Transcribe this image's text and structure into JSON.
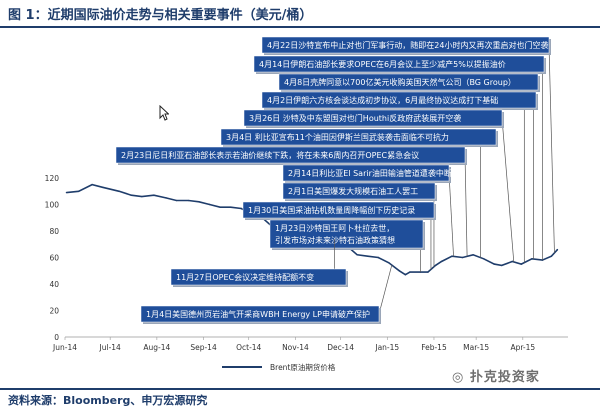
{
  "title": "图 1：近期国际油价走势与相关重要事件（美元/桶）",
  "source": "资料来源：Bloomberg、申万宏源研究",
  "watermark": "扑克投资家",
  "colors": {
    "line": "#1f3d6b",
    "event_box": "#1f4e9a",
    "title": "#1f3d6b"
  },
  "icons": [
    "cursor-icon",
    "wechat-icon"
  ],
  "chart_data": {
    "type": "line",
    "title": "",
    "xlabel": "",
    "ylabel": "",
    "ylim": [
      0,
      120
    ],
    "y_ticks": [
      0,
      20,
      40,
      60,
      80,
      100,
      120
    ],
    "x_tick_labels": [
      "Jun-14",
      "Jul-14",
      "Aug-14",
      "Sep-14",
      "Oct-14",
      "Nov-14",
      "Dec-14",
      "Jan-15",
      "Feb-15",
      "Mar-15",
      "Apr-15"
    ],
    "legend": {
      "placement": "bottom-center"
    },
    "series": [
      {
        "name": "Brent原油期货价格",
        "x": [
          "2014-06-02",
          "2014-06-10",
          "2014-06-19",
          "2014-06-26",
          "2014-07-07",
          "2014-07-15",
          "2014-07-22",
          "2014-07-30",
          "2014-08-07",
          "2014-08-14",
          "2014-08-22",
          "2014-08-29",
          "2014-09-05",
          "2014-09-12",
          "2014-09-19",
          "2014-09-26",
          "2014-10-03",
          "2014-10-10",
          "2014-10-16",
          "2014-10-24",
          "2014-10-31",
          "2014-11-07",
          "2014-11-14",
          "2014-11-21",
          "2014-11-28",
          "2014-12-05",
          "2014-12-12",
          "2014-12-19",
          "2014-12-26",
          "2015-01-02",
          "2015-01-09",
          "2015-01-13",
          "2015-01-16",
          "2015-01-23",
          "2015-01-28",
          "2015-02-02",
          "2015-02-06",
          "2015-02-13",
          "2015-02-20",
          "2015-02-27",
          "2015-03-06",
          "2015-03-13",
          "2015-03-18",
          "2015-03-25",
          "2015-03-31",
          "2015-04-07",
          "2015-04-14",
          "2015-04-20",
          "2015-04-24"
        ],
        "values": [
          109,
          110,
          115,
          113,
          110,
          107,
          106,
          107,
          105,
          103,
          103,
          102,
          100,
          98,
          98,
          97,
          93,
          90,
          84,
          86,
          85,
          83,
          80,
          79,
          73,
          69,
          62,
          61,
          60,
          56,
          50,
          47,
          49,
          49,
          49,
          54,
          57,
          61,
          60,
          62,
          59,
          55,
          54,
          57,
          55,
          59,
          58,
          61,
          66
        ]
      }
    ],
    "events": [
      {
        "label": "4月22日沙特宣布中止对也门军事行动，随即在24小时内又再次重启对也门空袭",
        "date": "2015-04-22"
      },
      {
        "label": "4月14日伊朗石油部长要求OPEC在6月会议上至少减产5%以提振油价",
        "date": "2015-04-14"
      },
      {
        "label": "4月8日壳牌同意以700亿美元收购英国天然气公司（BG Group）",
        "date": "2015-04-08"
      },
      {
        "label": "4月2日伊朗六方核会谈达成初步协议，6月最终协议达成打下基础",
        "date": "2015-04-02"
      },
      {
        "label": "3月26日 沙特及中东盟国对也门Houthi反政府武装展开空袭",
        "date": "2015-03-26"
      },
      {
        "label": "3月4日 利比亚宣布11个油田因伊斯兰国武装袭击面临不可抗力",
        "date": "2015-03-04"
      },
      {
        "label": "2月23日尼日利亚石油部长表示若油价继续下跌，将在未来6周内召开OPEC紧急会议",
        "date": "2015-02-23"
      },
      {
        "label": "2月14日利比亚El Sarir油田输油管道遭袭中断",
        "date": "2015-02-14"
      },
      {
        "label": "2月1日美国爆发大规模石油工人罢工",
        "date": "2015-02-01"
      },
      {
        "label": "1月30日美国采油钻机数量周降幅创下历史记录",
        "date": "2015-01-30"
      },
      {
        "label": "1月23日沙特国王阿卜杜拉去世，引发市场对未来沙特石油政策猜想",
        "date": "2015-01-23"
      },
      {
        "label": "11月27日OPEC会议决定维持配额不变",
        "date": "2014-11-27"
      },
      {
        "label": "1月4日美国德州页岩油气开采商WBH Energy LP申请破产保护",
        "date": "2015-01-04"
      }
    ]
  }
}
